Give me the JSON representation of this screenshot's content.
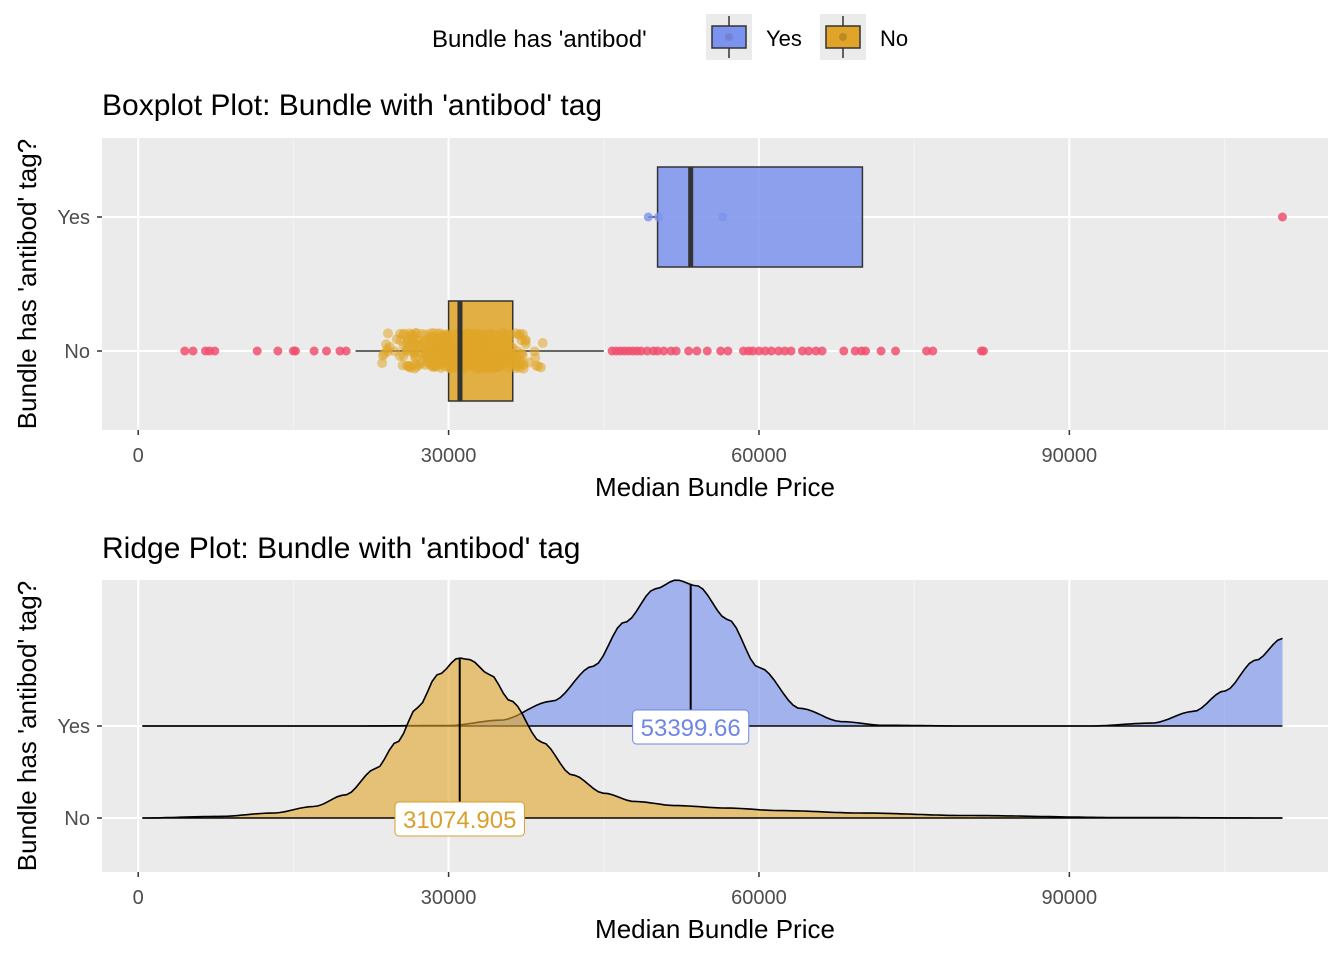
{
  "legend": {
    "title": "Bundle has 'antibod'",
    "items": [
      {
        "label": "Yes",
        "color": "#7B93EE"
      },
      {
        "label": "No",
        "color": "#E0A528"
      }
    ]
  },
  "colors": {
    "yes_fill": "#7B93EE",
    "no_fill": "#E0A528",
    "outlier": "#F0506E",
    "panel_bg": "#EBEBEB",
    "yes_label": "#6F86E6",
    "no_label": "#D9A02E"
  },
  "chart_data": [
    {
      "type": "boxplot",
      "title": "Boxplot Plot: Bundle with 'antibod' tag",
      "xlabel": "Median Bundle Price",
      "ylabel": "Bundle has 'antibod' tag?",
      "xlim": [
        -3500,
        115000
      ],
      "x_ticks": [
        0,
        30000,
        60000,
        90000
      ],
      "x_tick_labels": [
        "0",
        "30000",
        "60000",
        "90000"
      ],
      "categories": [
        "Yes",
        "No"
      ],
      "boxes": [
        {
          "name": "Yes",
          "min": 49300,
          "q1": 50200,
          "median": 53400,
          "q3": 70000,
          "max": 70000,
          "points": [
            49300,
            50300,
            56500
          ],
          "outliers": [
            110600
          ]
        },
        {
          "name": "No",
          "min": 21000,
          "q1": 30000,
          "median": 31100,
          "q3": 36200,
          "max": 45000,
          "points_range": [
            22500,
            40500
          ],
          "outliers": [
            4500,
            5300,
            6500,
            6900,
            7400,
            11500,
            13500,
            15000,
            15200,
            17000,
            18200,
            19500,
            20100,
            45800,
            46200,
            46600,
            47000,
            47400,
            47800,
            48200,
            48600,
            49200,
            49800,
            50200,
            50800,
            51500,
            52000,
            53200,
            54000,
            55000,
            56300,
            57000,
            58500,
            59000,
            59400,
            60000,
            60600,
            61200,
            61900,
            62500,
            63100,
            64200,
            64800,
            65500,
            66100,
            68200,
            69300,
            69900,
            70300,
            71800,
            73200,
            76200,
            76800,
            81500,
            81700
          ]
        }
      ],
      "grid": true
    },
    {
      "type": "ridge",
      "title": "Ridge Plot: Bundle with 'antibod' tag",
      "xlabel": "Median Bundle Price",
      "ylabel": "Bundle has 'antibod' tag?",
      "xlim": [
        -3500,
        115000
      ],
      "x_ticks": [
        0,
        30000,
        60000,
        90000
      ],
      "x_tick_labels": [
        "0",
        "30000",
        "60000",
        "90000"
      ],
      "categories": [
        "Yes",
        "No"
      ],
      "series": [
        {
          "name": "Yes",
          "x_range": [
            400,
            110600
          ],
          "density": [
            [
              400,
              0
            ],
            [
              20000,
              0
            ],
            [
              30000,
              0.003
            ],
            [
              35000,
              0.04
            ],
            [
              40000,
              0.17
            ],
            [
              44000,
              0.41
            ],
            [
              47000,
              0.71
            ],
            [
              50000,
              0.94
            ],
            [
              52000,
              1.0
            ],
            [
              54000,
              0.96
            ],
            [
              57000,
              0.73
            ],
            [
              60000,
              0.4
            ],
            [
              64000,
              0.12
            ],
            [
              68000,
              0.03
            ],
            [
              72000,
              0.005
            ],
            [
              80000,
              0
            ],
            [
              92000,
              0
            ],
            [
              98000,
              0.02
            ],
            [
              102000,
              0.1
            ],
            [
              105000,
              0.24
            ],
            [
              108000,
              0.45
            ],
            [
              110600,
              0.6
            ]
          ],
          "median": 53399.66,
          "median_label": "53399.66"
        },
        {
          "name": "No",
          "x_range": [
            400,
            110600
          ],
          "density": [
            [
              400,
              0
            ],
            [
              8000,
              0.01
            ],
            [
              13000,
              0.03
            ],
            [
              17000,
              0.07
            ],
            [
              20000,
              0.14
            ],
            [
              23000,
              0.3
            ],
            [
              25000,
              0.46
            ],
            [
              27000,
              0.67
            ],
            [
              29000,
              0.87
            ],
            [
              31000,
              0.97
            ],
            [
              32000,
              0.96
            ],
            [
              34000,
              0.87
            ],
            [
              36000,
              0.71
            ],
            [
              39000,
              0.46
            ],
            [
              42000,
              0.26
            ],
            [
              45000,
              0.15
            ],
            [
              48000,
              0.1
            ],
            [
              52000,
              0.075
            ],
            [
              57000,
              0.06
            ],
            [
              62000,
              0.045
            ],
            [
              70000,
              0.03
            ],
            [
              80000,
              0.015
            ],
            [
              95000,
              0.003
            ],
            [
              110600,
              0
            ]
          ],
          "median": 31074.905,
          "median_label": "31074.905"
        }
      ],
      "grid": true
    }
  ]
}
